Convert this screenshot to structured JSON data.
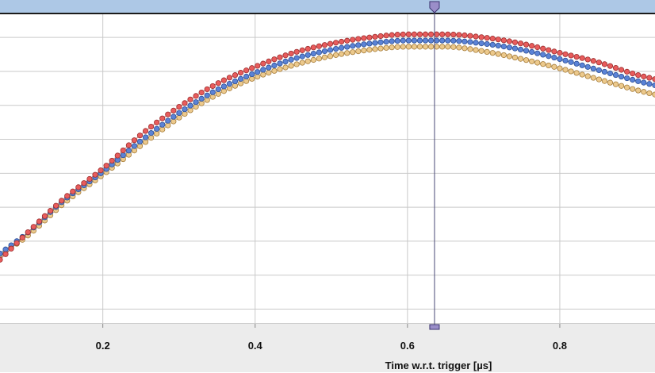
{
  "chart_data": {
    "type": "scatter",
    "xlabel": "Time w.r.t. trigger [µs]",
    "ylabel": "",
    "xlim": [
      0.065,
      0.925
    ],
    "ylim": [
      0,
      1
    ],
    "grid": true,
    "x_ticks": [
      {
        "value": 0.2,
        "label": "0.2"
      },
      {
        "value": 0.4,
        "label": "0.4"
      },
      {
        "value": 0.6,
        "label": "0.6"
      },
      {
        "value": 0.8,
        "label": "0.8"
      }
    ],
    "y_gridlines": [
      0.045,
      0.155,
      0.265,
      0.375,
      0.485,
      0.595,
      0.705,
      0.815,
      0.925
    ],
    "cursor_x": 0.6355,
    "series": [
      {
        "color": "#e85c5c",
        "stroke": "#9c2f2f",
        "x": [
          0.065,
          0.1,
          0.15,
          0.2,
          0.25,
          0.3,
          0.35,
          0.4,
          0.45,
          0.5,
          0.55,
          0.6,
          0.65,
          0.7,
          0.75,
          0.8,
          0.85,
          0.9,
          0.925
        ],
        "y": [
          0.205,
          0.29,
          0.405,
          0.5,
          0.61,
          0.7,
          0.775,
          0.83,
          0.875,
          0.905,
          0.925,
          0.935,
          0.935,
          0.925,
          0.905,
          0.875,
          0.845,
          0.805,
          0.79
        ]
      },
      {
        "color": "#5b83d6",
        "stroke": "#2c4f96",
        "x": [
          0.065,
          0.1,
          0.15,
          0.2,
          0.25,
          0.3,
          0.35,
          0.4,
          0.45,
          0.5,
          0.55,
          0.6,
          0.65,
          0.7,
          0.75,
          0.8,
          0.85,
          0.9,
          0.925
        ],
        "y": [
          0.225,
          0.29,
          0.4,
          0.49,
          0.59,
          0.68,
          0.755,
          0.81,
          0.855,
          0.885,
          0.905,
          0.915,
          0.915,
          0.905,
          0.885,
          0.855,
          0.82,
          0.785,
          0.77
        ]
      },
      {
        "color": "#ecc98c",
        "stroke": "#a57c3a",
        "x": [
          0.065,
          0.1,
          0.15,
          0.2,
          0.25,
          0.3,
          0.35,
          0.4,
          0.45,
          0.5,
          0.55,
          0.6,
          0.65,
          0.7,
          0.75,
          0.8,
          0.85,
          0.9,
          0.925
        ],
        "y": [
          0.22,
          0.28,
          0.39,
          0.48,
          0.575,
          0.665,
          0.74,
          0.795,
          0.835,
          0.865,
          0.885,
          0.895,
          0.895,
          0.88,
          0.855,
          0.825,
          0.79,
          0.755,
          0.74
        ]
      }
    ]
  }
}
